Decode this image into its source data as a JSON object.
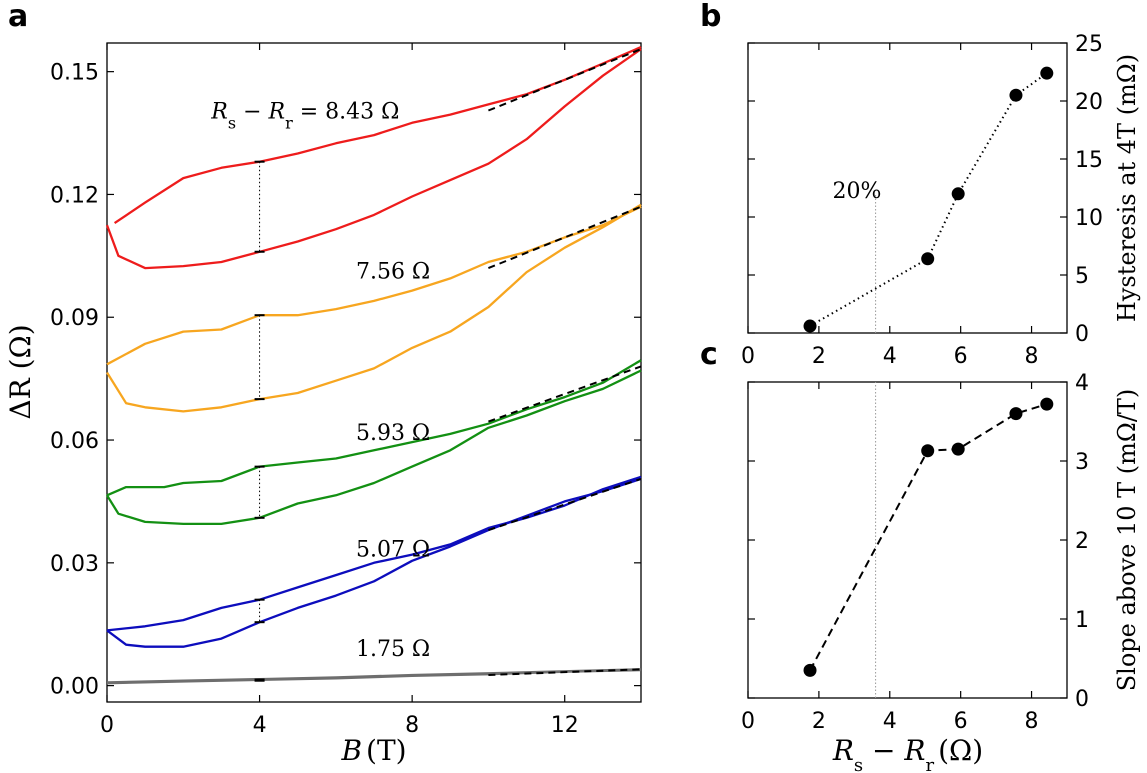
{
  "chart_data": [
    {
      "panel": "a",
      "type": "line",
      "xlabel": "B (T)",
      "ylabel": "ΔR (Ω)",
      "xlim": [
        0,
        14
      ],
      "ylim": [
        -0.004,
        0.157
      ],
      "x_ticks": [
        0,
        4,
        8,
        12
      ],
      "x_tick_labels": [
        "0",
        "4",
        "8",
        "12"
      ],
      "y_ticks": [
        0.0,
        0.03,
        0.06,
        0.09,
        0.12,
        0.15
      ],
      "y_tick_labels": [
        "0.00",
        "0.03",
        "0.06",
        "0.09",
        "0.12",
        "0.15"
      ],
      "hysteresis_field_T": 4,
      "fit_range_T": [
        10,
        14
      ],
      "series": [
        {
          "name": "8.43 Ω",
          "label": "R_s − R_r = 8.43 Ω",
          "color": "#ee1c1c",
          "label_at": [
            5.2,
            0.1385
          ],
          "upper": [
            [
              0.2,
              0.113
            ],
            [
              1,
              0.118
            ],
            [
              2,
              0.124
            ],
            [
              3,
              0.1265
            ],
            [
              4,
              0.128
            ],
            [
              5,
              0.13
            ],
            [
              6,
              0.1325
            ],
            [
              7,
              0.1345
            ],
            [
              8,
              0.1375
            ],
            [
              9,
              0.1395
            ],
            [
              10,
              0.142
            ],
            [
              11,
              0.1445
            ],
            [
              12,
              0.148
            ],
            [
              13,
              0.152
            ],
            [
              14,
              0.156
            ]
          ],
          "lower": [
            [
              0,
              0.1125
            ],
            [
              0.3,
              0.105
            ],
            [
              1,
              0.102
            ],
            [
              2,
              0.1025
            ],
            [
              3,
              0.1035
            ],
            [
              4,
              0.106
            ],
            [
              5,
              0.1085
            ],
            [
              6,
              0.1115
            ],
            [
              7,
              0.115
            ],
            [
              8,
              0.1195
            ],
            [
              9,
              0.1235
            ],
            [
              10,
              0.1275
            ],
            [
              11,
              0.1335
            ],
            [
              12,
              0.1415
            ],
            [
              13,
              0.149
            ],
            [
              14,
              0.1555
            ]
          ],
          "fit": [
            [
              10,
              0.1405
            ],
            [
              14,
              0.1555
            ]
          ],
          "hyst_marks": [
            0.128,
            0.106
          ]
        },
        {
          "name": "7.56 Ω",
          "label": "7.56 Ω",
          "color": "#f7a620",
          "label_at": [
            7.5,
            0.0995
          ],
          "upper": [
            [
              0,
              0.0785
            ],
            [
              1,
              0.0835
            ],
            [
              2,
              0.0865
            ],
            [
              3,
              0.087
            ],
            [
              4,
              0.0905
            ],
            [
              5,
              0.0905
            ],
            [
              6,
              0.092
            ],
            [
              7,
              0.094
            ],
            [
              8,
              0.0965
            ],
            [
              9,
              0.0995
            ],
            [
              10,
              0.1035
            ],
            [
              11,
              0.106
            ],
            [
              12,
              0.1095
            ],
            [
              13,
              0.1125
            ],
            [
              14,
              0.117
            ]
          ],
          "lower": [
            [
              0,
              0.0765
            ],
            [
              0.5,
              0.069
            ],
            [
              1,
              0.068
            ],
            [
              2,
              0.067
            ],
            [
              3,
              0.068
            ],
            [
              4,
              0.07
            ],
            [
              5,
              0.0715
            ],
            [
              6,
              0.0745
            ],
            [
              7,
              0.0775
            ],
            [
              8,
              0.0825
            ],
            [
              9,
              0.0865
            ],
            [
              10,
              0.0925
            ],
            [
              11,
              0.101
            ],
            [
              12,
              0.107
            ],
            [
              13,
              0.112
            ],
            [
              14,
              0.1175
            ]
          ],
          "fit": [
            [
              10,
              0.102
            ],
            [
              14,
              0.117
            ]
          ],
          "hyst_marks": [
            0.0905,
            0.07
          ]
        },
        {
          "name": "5.93 Ω",
          "label": "5.93 Ω",
          "color": "#139013",
          "label_at": [
            7.5,
            0.06
          ],
          "upper": [
            [
              0,
              0.0465
            ],
            [
              0.5,
              0.0485
            ],
            [
              1.5,
              0.0485
            ],
            [
              2,
              0.0495
            ],
            [
              3,
              0.05
            ],
            [
              4,
              0.0535
            ],
            [
              5,
              0.0545
            ],
            [
              6,
              0.0555
            ],
            [
              7,
              0.0575
            ],
            [
              8,
              0.0595
            ],
            [
              9,
              0.0615
            ],
            [
              10,
              0.064
            ],
            [
              11,
              0.0675
            ],
            [
              12,
              0.0705
            ],
            [
              13,
              0.074
            ],
            [
              14,
              0.0795
            ]
          ],
          "lower": [
            [
              0,
              0.0465
            ],
            [
              0.3,
              0.042
            ],
            [
              1,
              0.04
            ],
            [
              2,
              0.0395
            ],
            [
              3,
              0.0395
            ],
            [
              4,
              0.041
            ],
            [
              5,
              0.0445
            ],
            [
              6,
              0.0465
            ],
            [
              7,
              0.0495
            ],
            [
              8,
              0.0535
            ],
            [
              9,
              0.0575
            ],
            [
              10,
              0.063
            ],
            [
              11,
              0.066
            ],
            [
              12,
              0.0695
            ],
            [
              13,
              0.0725
            ],
            [
              14,
              0.077
            ]
          ],
          "fit": [
            [
              10,
              0.0645
            ],
            [
              14,
              0.078
            ]
          ],
          "hyst_marks": [
            0.0535,
            0.041
          ]
        },
        {
          "name": "5.07 Ω",
          "label": "5.07 Ω",
          "color": "#0d0dbd",
          "label_at": [
            7.5,
            0.0315
          ],
          "upper": [
            [
              0,
              0.0135
            ],
            [
              1,
              0.0145
            ],
            [
              2,
              0.016
            ],
            [
              3,
              0.019
            ],
            [
              4,
              0.021
            ],
            [
              5,
              0.024
            ],
            [
              6,
              0.027
            ],
            [
              7,
              0.03
            ],
            [
              8,
              0.032
            ],
            [
              9,
              0.0345
            ],
            [
              10,
              0.0385
            ],
            [
              11,
              0.041
            ],
            [
              12,
              0.044
            ],
            [
              13,
              0.048
            ],
            [
              14,
              0.051
            ]
          ],
          "lower": [
            [
              0,
              0.0135
            ],
            [
              0.5,
              0.01
            ],
            [
              1,
              0.0095
            ],
            [
              2,
              0.0095
            ],
            [
              3,
              0.0115
            ],
            [
              4,
              0.0155
            ],
            [
              5,
              0.019
            ],
            [
              6,
              0.022
            ],
            [
              7,
              0.0255
            ],
            [
              8,
              0.0305
            ],
            [
              9,
              0.034
            ],
            [
              10,
              0.038
            ],
            [
              11,
              0.0415
            ],
            [
              12,
              0.045
            ],
            [
              13,
              0.0475
            ],
            [
              14,
              0.0505
            ]
          ],
          "fit": [
            [
              10,
              0.038
            ],
            [
              14,
              0.0505
            ]
          ],
          "hyst_marks": [
            0.021,
            0.0155
          ]
        },
        {
          "name": "1.75 Ω",
          "label": "1.75 Ω",
          "color": "#6e6e6e",
          "label_at": [
            7.5,
            0.0072
          ],
          "upper": [
            [
              0,
              0.0008
            ],
            [
              2,
              0.0012
            ],
            [
              4,
              0.0016
            ],
            [
              6,
              0.002
            ],
            [
              8,
              0.0026
            ],
            [
              10,
              0.003
            ],
            [
              12,
              0.0035
            ],
            [
              14,
              0.004
            ]
          ],
          "lower": [
            [
              0,
              0.0006
            ],
            [
              2,
              0.001
            ],
            [
              4,
              0.0014
            ],
            [
              6,
              0.0018
            ],
            [
              8,
              0.0024
            ],
            [
              10,
              0.0028
            ],
            [
              12,
              0.0034
            ],
            [
              14,
              0.0038
            ]
          ],
          "fit": [
            [
              10,
              0.0026
            ],
            [
              14,
              0.004
            ]
          ],
          "hyst_marks": [
            0.0015,
            0.0012
          ]
        }
      ]
    },
    {
      "panel": "b",
      "type": "scatter",
      "xlabel": "",
      "ylabel": "Hysteresis at 4T (mΩ)",
      "xlim": [
        0,
        9
      ],
      "ylim": [
        0,
        25
      ],
      "x_ticks": [
        0,
        2,
        4,
        6,
        8
      ],
      "y_ticks": [
        0,
        5,
        10,
        15,
        20,
        25
      ],
      "line_style": "dotted",
      "marker_line_x": 3.6,
      "marker_label": "20%",
      "x": [
        1.75,
        5.07,
        5.93,
        7.56,
        8.43
      ],
      "values": [
        0.6,
        6.4,
        12.0,
        20.5,
        22.4
      ]
    },
    {
      "panel": "c",
      "type": "scatter",
      "xlabel": "R_s − R_r (Ω)",
      "ylabel": "Slope above 10 T (mΩ/T)",
      "xlim": [
        0,
        9
      ],
      "ylim": [
        0,
        4
      ],
      "x_ticks": [
        0,
        2,
        4,
        6,
        8
      ],
      "y_ticks": [
        0,
        1,
        2,
        3,
        4
      ],
      "line_style": "dashed",
      "marker_line_x": 3.6,
      "x": [
        1.75,
        5.07,
        5.93,
        7.56,
        8.43
      ],
      "values": [
        0.35,
        3.13,
        3.15,
        3.6,
        3.72
      ]
    }
  ],
  "labels": {
    "panel_a": "a",
    "panel_b": "b",
    "panel_c": "c",
    "a_xlabel_var": "B",
    "a_xlabel_unit": "(T)",
    "a_ylabel": "ΔR (Ω)",
    "a_first_label_prefix": "R",
    "a_sub_s": "s",
    "a_minus": " − ",
    "a_sub_r": "r",
    "b_ylabel": "Hysteresis at 4T (mΩ)",
    "c_ylabel": "Slope above 10 T (mΩ/T)",
    "c_xlabel_R": "R",
    "c_xlabel_sub_s": "s",
    "c_xlabel_minus": " − ",
    "c_xlabel_sub_r": "r",
    "c_xlabel_unit": "(Ω)",
    "b_marker_label": "20%"
  }
}
